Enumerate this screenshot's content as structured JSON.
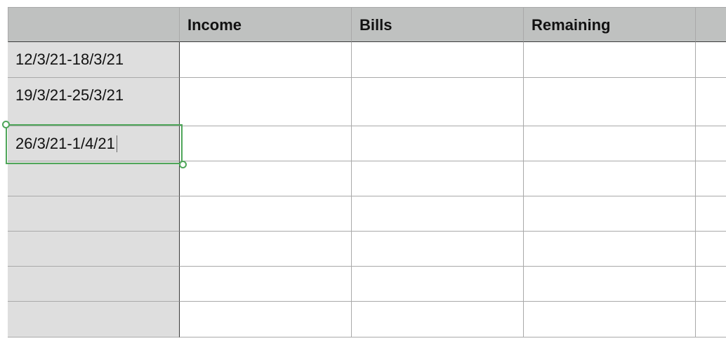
{
  "sheet": {
    "columns": [
      "",
      "Income",
      "Bills",
      "Remaining",
      ""
    ],
    "rows": [
      [
        "12/3/21-18/3/21",
        "",
        "",
        "",
        ""
      ],
      [
        "19/3/21-25/3/21",
        "",
        "",
        "",
        ""
      ],
      [
        "26/3/21-1/4/21",
        "",
        "",
        "",
        ""
      ],
      [
        "",
        "",
        "",
        "",
        ""
      ],
      [
        "",
        "",
        "",
        "",
        ""
      ],
      [
        "",
        "",
        "",
        "",
        ""
      ],
      [
        "",
        "",
        "",
        "",
        ""
      ],
      [
        "",
        "",
        "",
        "",
        ""
      ]
    ],
    "selected_cell": "26/3/21-1/4/21",
    "selection_color": "#4fa65a",
    "header_color": "#bfc1c0",
    "row_header_color": "#dedede"
  }
}
